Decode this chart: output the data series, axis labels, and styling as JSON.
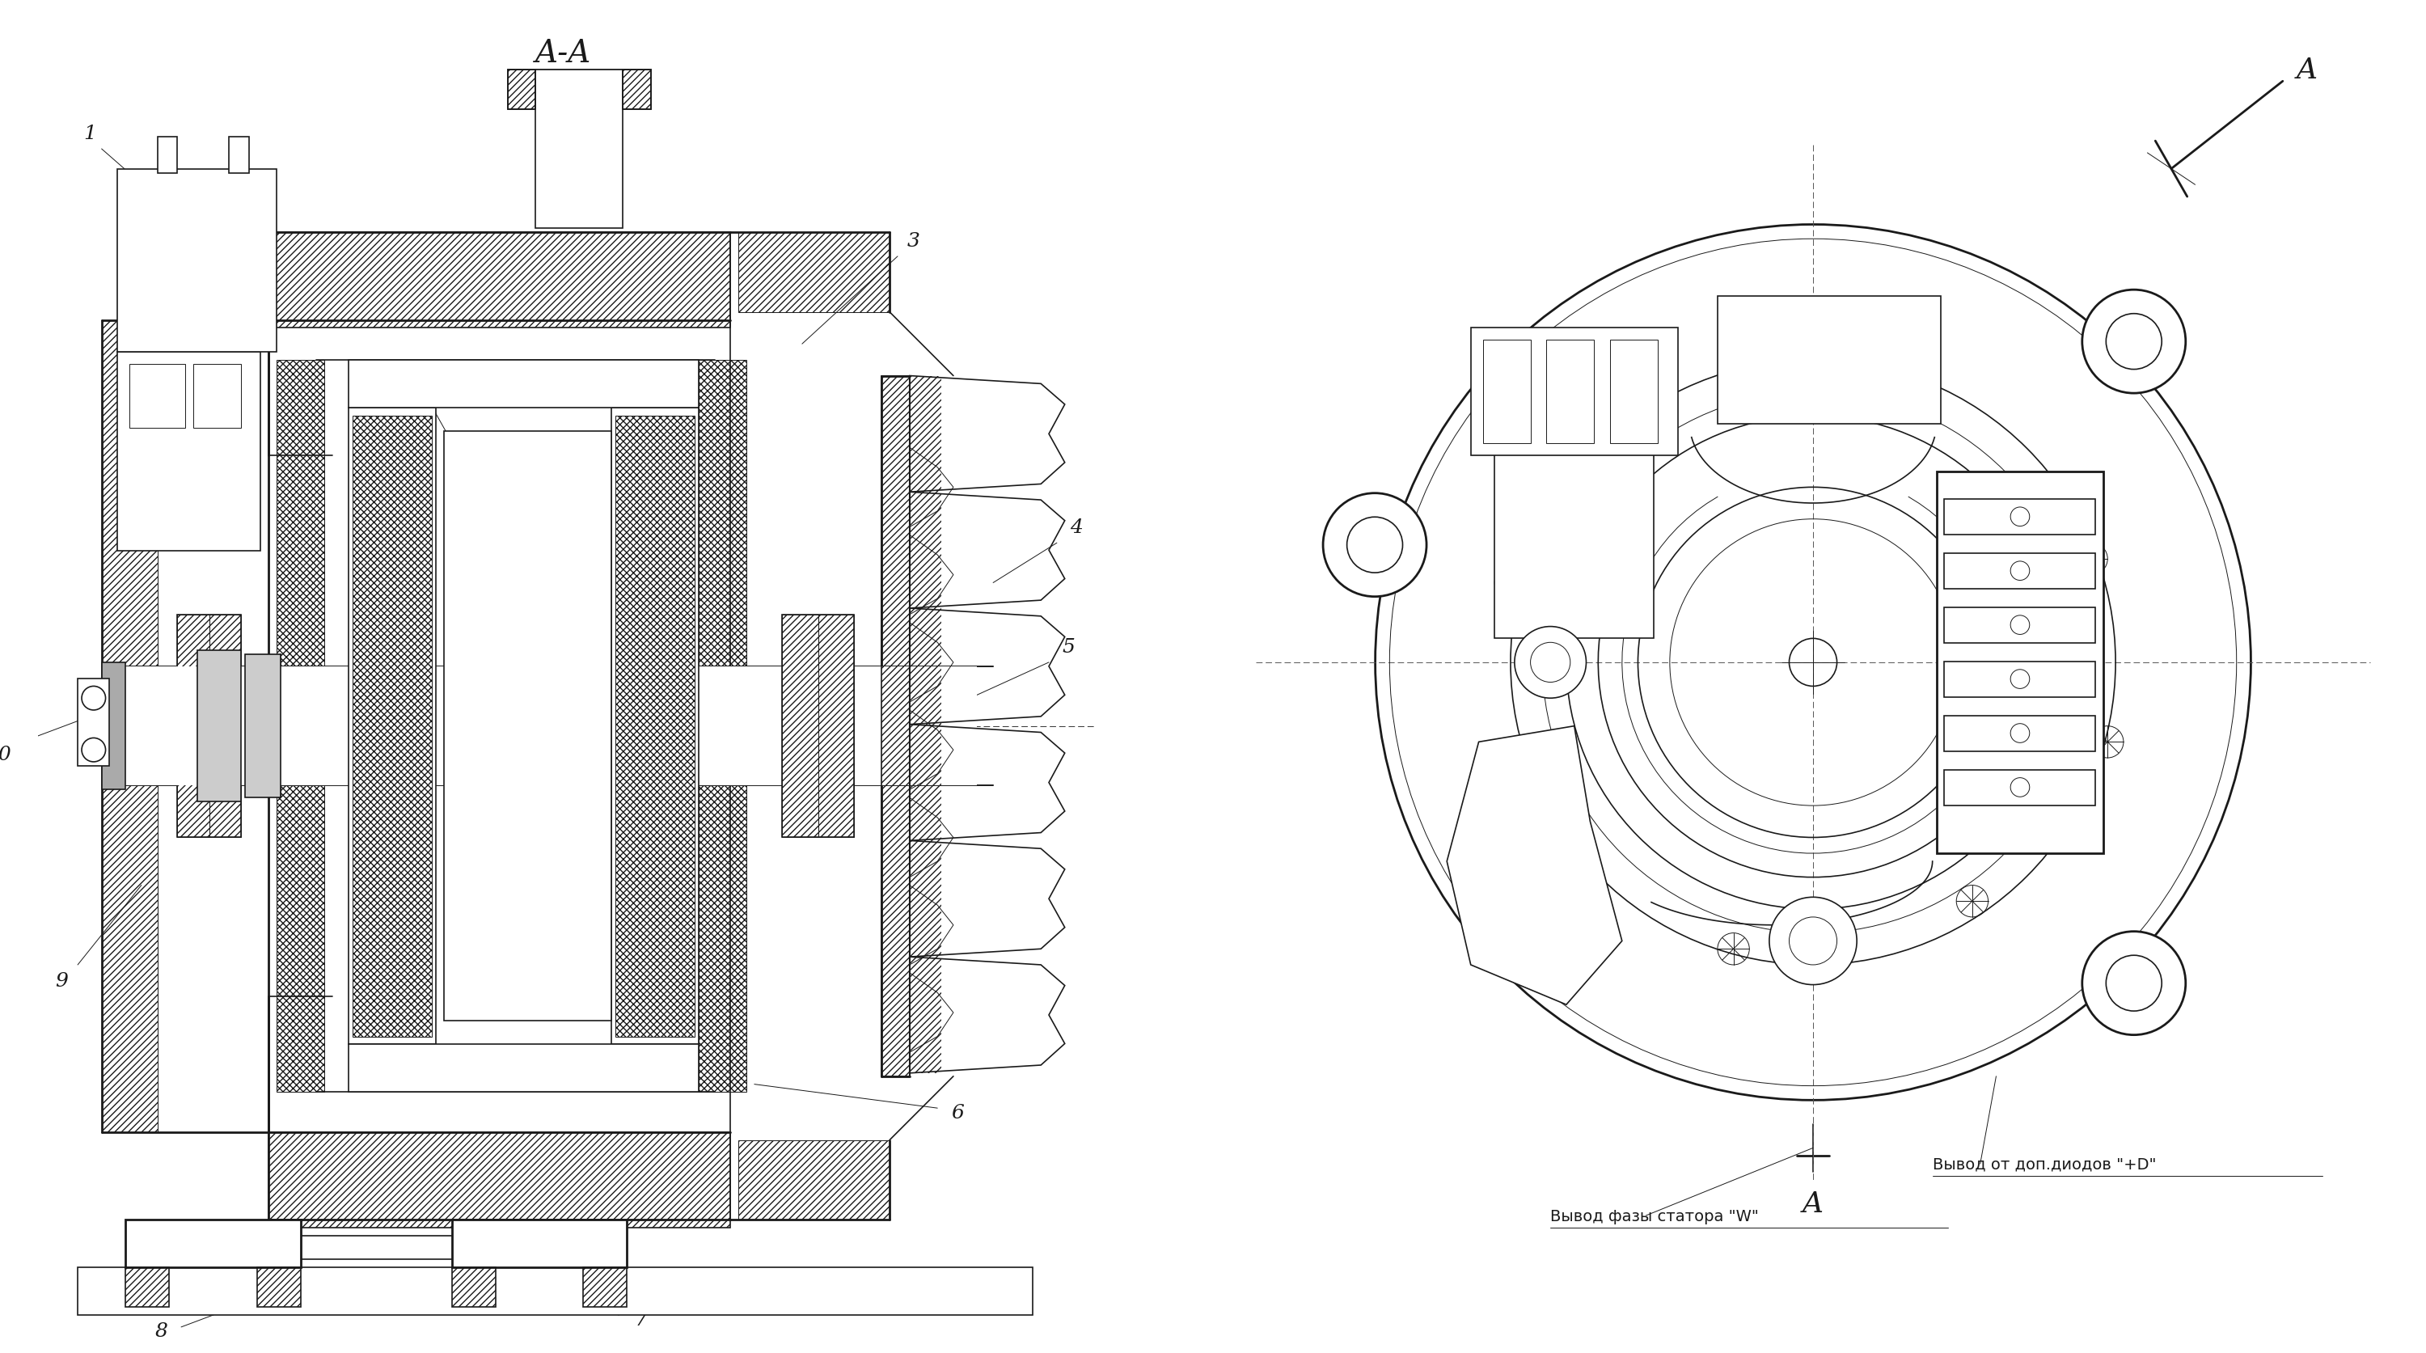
{
  "bg_color": "#ffffff",
  "line_color": "#1a1a1a",
  "title_aa": "A-A",
  "label_a": "A",
  "text_w": "Вывод фазы статора \"W\"",
  "text_d": "Вывод от доп.диодов \"+D\"",
  "lw": 1.2,
  "lw2": 2.0,
  "lw1": 0.7,
  "fs_label": 16,
  "fs_text": 13
}
